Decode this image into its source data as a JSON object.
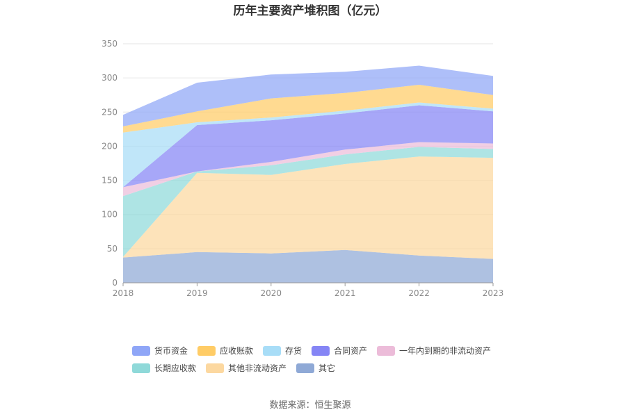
{
  "chart_data": {
    "type": "area",
    "stacked": true,
    "title": "历年主要资产堆积图（亿元）",
    "x": [
      "2018",
      "2019",
      "2020",
      "2021",
      "2022",
      "2023"
    ],
    "ylim": [
      0,
      350
    ],
    "yticks": [
      0,
      50,
      100,
      150,
      200,
      250,
      300,
      350
    ],
    "grid": true,
    "legend_position": "bottom",
    "series": [
      {
        "name": "其它",
        "color": "#8fa9d6",
        "values": [
          37,
          45,
          43,
          48,
          40,
          35
        ]
      },
      {
        "name": "其他非流动资产",
        "color": "#fcd8a0",
        "values": [
          1,
          116,
          115,
          126,
          145,
          148
        ]
      },
      {
        "name": "长期应收款",
        "color": "#8fd9d9",
        "values": [
          89,
          2,
          14,
          14,
          14,
          13
        ]
      },
      {
        "name": "一年内到期的非流动资产",
        "color": "#ecbcd9",
        "values": [
          13,
          0,
          5,
          7,
          7,
          8
        ]
      },
      {
        "name": "合同资产",
        "color": "#8585f5",
        "values": [
          0,
          68,
          61,
          53,
          54,
          47
        ]
      },
      {
        "name": "存货",
        "color": "#a8ddf7",
        "values": [
          80,
          4,
          4,
          4,
          4,
          4
        ]
      },
      {
        "name": "应收账款",
        "color": "#ffcc66",
        "values": [
          9,
          16,
          28,
          26,
          26,
          20
        ]
      },
      {
        "name": "货币资金",
        "color": "#8fa6f7",
        "values": [
          17,
          42,
          35,
          31,
          28,
          28
        ]
      }
    ],
    "legend_order": [
      "货币资金",
      "应收账款",
      "存货",
      "合同资产",
      "一年内到期的非流动资产",
      "长期应收款",
      "其他非流动资产",
      "其它"
    ],
    "source": "数据来源：恒生聚源"
  }
}
